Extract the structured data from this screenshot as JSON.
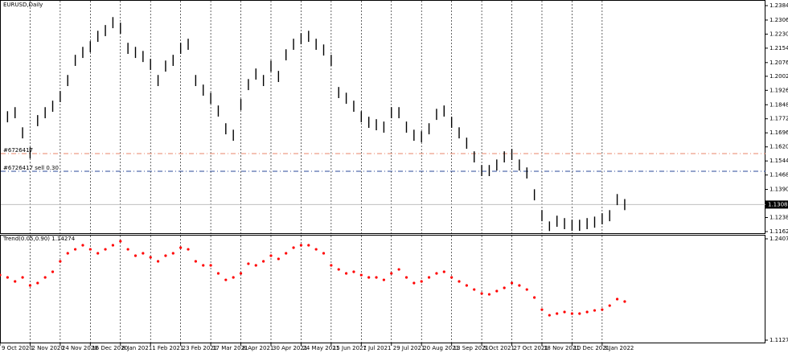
{
  "chart_data": [
    {
      "type": "hilo",
      "title": "EURUSD,Daily",
      "color": "#000000",
      "high": [
        1.1792,
        1.1813,
        1.1835,
        1.1726,
        1.1618,
        1.1792,
        1.1835,
        1.187,
        1.1922,
        1.2009,
        1.2118,
        1.2161,
        1.2192,
        1.2248,
        1.2279,
        1.2322,
        1.2292,
        1.2183,
        1.2161,
        1.2139,
        1.2096,
        1.2009,
        1.2087,
        1.2118,
        1.2183,
        1.2205,
        1.2009,
        1.1957,
        1.1913,
        1.1844,
        1.1748,
        1.1713,
        1.1879,
        1.1987,
        1.2044,
        1.2009,
        1.2087,
        1.2031,
        1.2148,
        1.2205,
        1.2235,
        1.2248,
        1.2205,
        1.2174,
        1.2118,
        1.1944,
        1.1913,
        1.187,
        1.1813,
        1.1783,
        1.177,
        1.1757,
        1.1835,
        1.1835,
        1.1757,
        1.1713,
        1.1705,
        1.1748,
        1.1826,
        1.1844,
        1.1783,
        1.1726,
        1.167,
        1.1596,
        1.1522,
        1.1522,
        1.1552,
        1.1596,
        1.1609,
        1.1552,
        1.1509,
        1.1391,
        1.1278,
        1.1217,
        1.1248,
        1.1235,
        1.1226,
        1.1226,
        1.1235,
        1.1243,
        1.1261,
        1.1278,
        1.1365,
        1.1338
      ],
      "low": [
        1.1732,
        1.1753,
        1.1775,
        1.1666,
        1.1558,
        1.1732,
        1.1775,
        1.181,
        1.1862,
        1.1949,
        1.2058,
        1.2101,
        1.2132,
        1.2188,
        1.2219,
        1.2262,
        1.2232,
        1.2123,
        1.2101,
        1.2079,
        1.2036,
        1.1949,
        1.2027,
        1.2058,
        1.2123,
        1.2145,
        1.1949,
        1.1897,
        1.1853,
        1.1784,
        1.1688,
        1.1653,
        1.1819,
        1.1927,
        1.1984,
        1.1949,
        1.2027,
        1.1971,
        1.2088,
        1.2145,
        1.2175,
        1.2188,
        1.2145,
        1.2114,
        1.2058,
        1.1884,
        1.1853,
        1.181,
        1.1753,
        1.1723,
        1.171,
        1.1697,
        1.1775,
        1.1775,
        1.1697,
        1.1653,
        1.1645,
        1.1688,
        1.1766,
        1.1784,
        1.1723,
        1.1666,
        1.161,
        1.1536,
        1.1462,
        1.1462,
        1.1492,
        1.1536,
        1.1549,
        1.1492,
        1.1449,
        1.1331,
        1.1218,
        1.1165,
        1.1188,
        1.1175,
        1.1166,
        1.1166,
        1.1175,
        1.1183,
        1.1201,
        1.1218,
        1.1305,
        1.1278
      ],
      "xlim": [
        0,
        101.7
      ],
      "xticks": [
        {
          "value": 0,
          "label": "9 Oct 2020"
        },
        {
          "value": 4,
          "label": "2 Nov 2020"
        },
        {
          "value": 8,
          "label": "24 Nov 2020"
        },
        {
          "value": 12,
          "label": "16 Dec 2020"
        },
        {
          "value": 16,
          "label": "8 Jan 2021"
        },
        {
          "value": 20,
          "label": "1 Feb 2021"
        },
        {
          "value": 24,
          "label": "23 Feb 2021"
        },
        {
          "value": 28,
          "label": "17 Mar 2021"
        },
        {
          "value": 32,
          "label": "8 Apr 2021"
        },
        {
          "value": 36,
          "label": "30 Apr 2021"
        },
        {
          "value": 40,
          "label": "24 May 2021"
        },
        {
          "value": 44,
          "label": "15 Jun 2021"
        },
        {
          "value": 48,
          "label": "7 Jul 2021"
        },
        {
          "value": 52,
          "label": "29 Jul 2021"
        },
        {
          "value": 56,
          "label": "20 Aug 2021"
        },
        {
          "value": 60,
          "label": "13 Sep 2021"
        },
        {
          "value": 64,
          "label": "5 Oct 2021"
        },
        {
          "value": 68,
          "label": "27 Oct 2021"
        },
        {
          "value": 72,
          "label": "18 Nov 2021"
        },
        {
          "value": 76,
          "label": "10 Dec 2021"
        },
        {
          "value": 80,
          "label": "3 Jan 2022"
        }
      ],
      "ylim": [
        1.1162,
        1.2384
      ],
      "yticks": [
        {
          "value": 1.2384,
          "label": "1.23840"
        },
        {
          "value": 1.2306,
          "label": "1.23060"
        },
        {
          "value": 1.223,
          "label": "1.22300"
        },
        {
          "value": 1.2154,
          "label": "1.21540"
        },
        {
          "value": 1.2076,
          "label": "1.20760"
        },
        {
          "value": 1.2002,
          "label": "1.20020"
        },
        {
          "value": 1.1926,
          "label": "1.19260"
        },
        {
          "value": 1.1848,
          "label": "1.18480"
        },
        {
          "value": 1.1772,
          "label": "1.17720"
        },
        {
          "value": 1.1696,
          "label": "1.16960"
        },
        {
          "value": 1.162,
          "label": "1.16200"
        },
        {
          "value": 1.1544,
          "label": "1.15440"
        },
        {
          "value": 1.1468,
          "label": "1.14680"
        },
        {
          "value": 1.139,
          "label": "1.13900"
        },
        {
          "value": 1.1238,
          "label": "1.12380"
        },
        {
          "value": 1.1162,
          "label": "1.11620"
        }
      ],
      "current_price": 1.13081,
      "orders": [
        {
          "label": "#6726417",
          "value": 1.1584,
          "color": "#e8866a"
        },
        {
          "label": "#6726417 sell 0.30",
          "value": 1.1488,
          "color": "#2a4a9a"
        }
      ],
      "grid": true
    },
    {
      "type": "scatter",
      "title": "Trend(0.05,0.90) 1.14274",
      "color": "#ff0000",
      "values": [
        1.195,
        1.192,
        1.1869,
        1.192,
        1.1818,
        1.1849,
        1.192,
        1.1991,
        1.2123,
        1.2225,
        1.2275,
        1.2326,
        1.2275,
        1.2225,
        1.2275,
        1.2326,
        1.2377,
        1.2275,
        1.2194,
        1.2225,
        1.2174,
        1.2123,
        1.2194,
        1.2225,
        1.2296,
        1.2275,
        1.2123,
        1.2072,
        1.2072,
        1.1971,
        1.1889,
        1.192,
        1.1971,
        1.2093,
        1.2072,
        1.2123,
        1.2194,
        1.2154,
        1.2225,
        1.2296,
        1.2326,
        1.2326,
        1.2275,
        1.2225,
        1.2072,
        1.2021,
        1.1971,
        1.1991,
        1.195,
        1.192,
        1.192,
        1.1889,
        1.1971,
        1.2021,
        1.192,
        1.1849,
        1.1869,
        1.192,
        1.1971,
        1.1991,
        1.192,
        1.1869,
        1.1818,
        1.1767,
        1.1717,
        1.1706,
        1.1747,
        1.1788,
        1.1849,
        1.1818,
        1.1767,
        1.1666,
        1.1513,
        1.1442,
        1.1463,
        1.1483,
        1.1463,
        1.1463,
        1.1483,
        1.1503,
        1.1513,
        1.1564,
        1.1646,
        1.1615
      ],
      "ylim": [
        1.11276,
        1.24075
      ],
      "yticks": [
        1.24075,
        1.11276
      ]
    }
  ]
}
